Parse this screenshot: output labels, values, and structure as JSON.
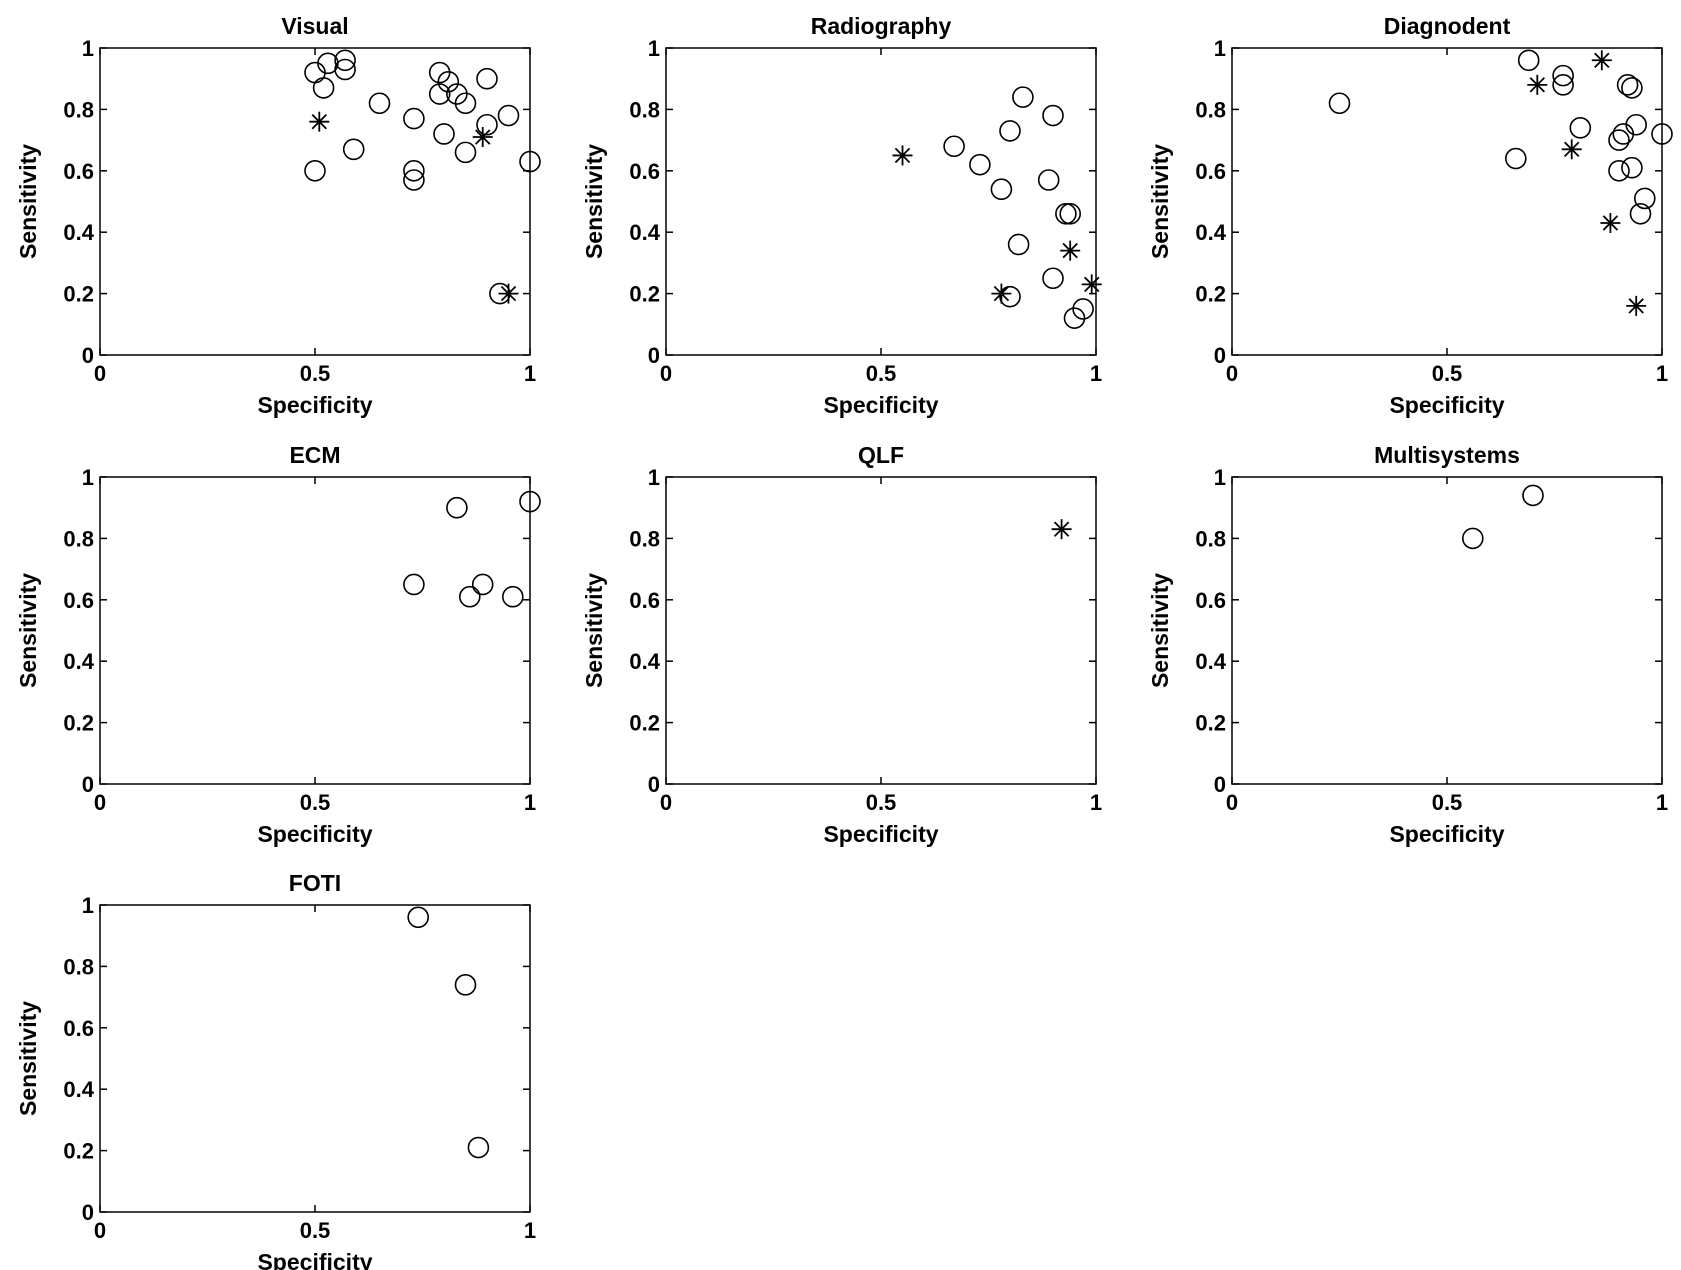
{
  "chart_data": [
    {
      "type": "scatter",
      "title": "Visual",
      "xlabel": "Specificity",
      "ylabel": "Sensitivity",
      "xlim": [
        0,
        1
      ],
      "ylim": [
        0,
        1
      ],
      "xticks": [
        "0",
        "0.5",
        "1"
      ],
      "yticks": [
        "0",
        "0.2",
        "0.4",
        "0.6",
        "0.8",
        "1"
      ],
      "grid": false,
      "series": [
        {
          "marker": "circle",
          "points": [
            [
              0.5,
              0.92
            ],
            [
              0.53,
              0.95
            ],
            [
              0.57,
              0.96
            ],
            [
              0.57,
              0.93
            ],
            [
              0.52,
              0.87
            ],
            [
              0.65,
              0.82
            ],
            [
              0.79,
              0.92
            ],
            [
              0.81,
              0.89
            ],
            [
              0.79,
              0.85
            ],
            [
              0.83,
              0.85
            ],
            [
              0.85,
              0.82
            ],
            [
              0.9,
              0.9
            ],
            [
              0.73,
              0.77
            ],
            [
              0.9,
              0.75
            ],
            [
              0.95,
              0.78
            ],
            [
              0.59,
              0.67
            ],
            [
              0.8,
              0.72
            ],
            [
              0.85,
              0.66
            ],
            [
              0.5,
              0.6
            ],
            [
              0.73,
              0.6
            ],
            [
              0.73,
              0.57
            ],
            [
              1.0,
              0.63
            ],
            [
              0.93,
              0.2
            ]
          ]
        },
        {
          "marker": "asterisk",
          "points": [
            [
              0.51,
              0.76
            ],
            [
              0.89,
              0.71
            ],
            [
              0.95,
              0.2
            ]
          ]
        }
      ]
    },
    {
      "type": "scatter",
      "title": "Radiography",
      "xlabel": "Specificity",
      "ylabel": "Sensitivity",
      "xlim": [
        0,
        1
      ],
      "ylim": [
        0,
        1
      ],
      "xticks": [
        "0",
        "0.5",
        "1"
      ],
      "yticks": [
        "0",
        "0.2",
        "0.4",
        "0.6",
        "0.8",
        "1"
      ],
      "grid": false,
      "series": [
        {
          "marker": "circle",
          "points": [
            [
              0.83,
              0.84
            ],
            [
              0.9,
              0.78
            ],
            [
              0.8,
              0.73
            ],
            [
              0.67,
              0.68
            ],
            [
              0.73,
              0.62
            ],
            [
              0.89,
              0.57
            ],
            [
              0.78,
              0.54
            ],
            [
              0.93,
              0.46
            ],
            [
              0.94,
              0.46
            ],
            [
              0.82,
              0.36
            ],
            [
              0.9,
              0.25
            ],
            [
              0.8,
              0.19
            ],
            [
              0.97,
              0.15
            ],
            [
              0.95,
              0.12
            ]
          ]
        },
        {
          "marker": "asterisk",
          "points": [
            [
              0.55,
              0.65
            ],
            [
              0.94,
              0.34
            ],
            [
              0.99,
              0.23
            ],
            [
              0.78,
              0.2
            ]
          ]
        }
      ]
    },
    {
      "type": "scatter",
      "title": "Diagnodent",
      "xlabel": "Specificity",
      "ylabel": "Sensitivity",
      "xlim": [
        0,
        1
      ],
      "ylim": [
        0,
        1
      ],
      "xticks": [
        "0",
        "0.5",
        "1"
      ],
      "yticks": [
        "0",
        "0.2",
        "0.4",
        "0.6",
        "0.8",
        "1"
      ],
      "grid": false,
      "series": [
        {
          "marker": "circle",
          "points": [
            [
              0.25,
              0.82
            ],
            [
              0.69,
              0.96
            ],
            [
              0.77,
              0.91
            ],
            [
              0.77,
              0.88
            ],
            [
              0.92,
              0.88
            ],
            [
              0.93,
              0.87
            ],
            [
              0.81,
              0.74
            ],
            [
              0.94,
              0.75
            ],
            [
              0.91,
              0.72
            ],
            [
              0.9,
              0.7
            ],
            [
              1.0,
              0.72
            ],
            [
              0.66,
              0.64
            ],
            [
              0.9,
              0.6
            ],
            [
              0.93,
              0.61
            ],
            [
              0.96,
              0.51
            ],
            [
              0.95,
              0.46
            ]
          ]
        },
        {
          "marker": "asterisk",
          "points": [
            [
              0.86,
              0.96
            ],
            [
              0.71,
              0.88
            ],
            [
              0.79,
              0.67
            ],
            [
              0.88,
              0.43
            ],
            [
              0.94,
              0.16
            ]
          ]
        }
      ]
    },
    {
      "type": "scatter",
      "title": "ECM",
      "xlabel": "Specificity",
      "ylabel": "Sensitivity",
      "xlim": [
        0,
        1
      ],
      "ylim": [
        0,
        1
      ],
      "xticks": [
        "0",
        "0.5",
        "1"
      ],
      "yticks": [
        "0",
        "0.2",
        "0.4",
        "0.6",
        "0.8",
        "1"
      ],
      "grid": false,
      "series": [
        {
          "marker": "circle",
          "points": [
            [
              0.83,
              0.9
            ],
            [
              1.0,
              0.92
            ],
            [
              0.73,
              0.65
            ],
            [
              0.89,
              0.65
            ],
            [
              0.86,
              0.61
            ],
            [
              0.96,
              0.61
            ]
          ]
        }
      ]
    },
    {
      "type": "scatter",
      "title": "QLF",
      "xlabel": "Specificity",
      "ylabel": "Sensitivity",
      "xlim": [
        0,
        1
      ],
      "ylim": [
        0,
        1
      ],
      "xticks": [
        "0",
        "0.5",
        "1"
      ],
      "yticks": [
        "0",
        "0.2",
        "0.4",
        "0.6",
        "0.8",
        "1"
      ],
      "grid": false,
      "series": [
        {
          "marker": "asterisk",
          "points": [
            [
              0.92,
              0.83
            ]
          ]
        }
      ]
    },
    {
      "type": "scatter",
      "title": "Multisystems",
      "xlabel": "Specificity",
      "ylabel": "Sensitivity",
      "xlim": [
        0,
        1
      ],
      "ylim": [
        0,
        1
      ],
      "xticks": [
        "0",
        "0.5",
        "1"
      ],
      "yticks": [
        "0",
        "0.2",
        "0.4",
        "0.6",
        "0.8",
        "1"
      ],
      "grid": false,
      "series": [
        {
          "marker": "circle",
          "points": [
            [
              0.56,
              0.8
            ],
            [
              0.7,
              0.94
            ]
          ]
        }
      ]
    },
    {
      "type": "scatter",
      "title": "FOTI",
      "xlabel": "Specificity",
      "ylabel": "Sensitivity",
      "xlim": [
        0,
        1
      ],
      "ylim": [
        0,
        1
      ],
      "xticks": [
        "0",
        "0.5",
        "1"
      ],
      "yticks": [
        "0",
        "0.2",
        "0.4",
        "0.6",
        "0.8",
        "1"
      ],
      "grid": false,
      "series": [
        {
          "marker": "circle",
          "points": [
            [
              0.74,
              0.96
            ],
            [
              0.85,
              0.74
            ],
            [
              0.88,
              0.21
            ]
          ]
        }
      ]
    }
  ]
}
